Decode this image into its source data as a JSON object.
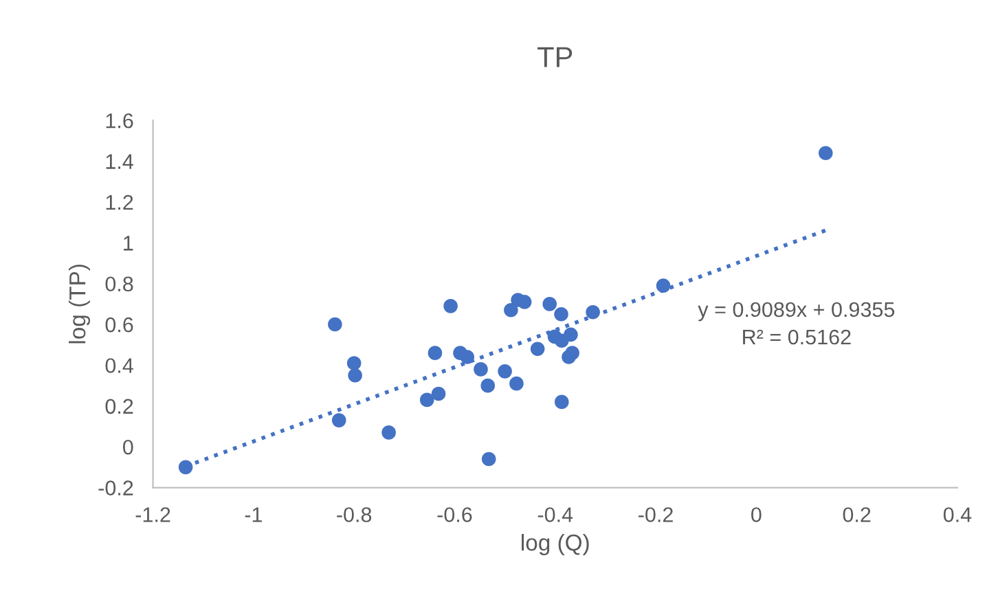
{
  "chart_data": {
    "type": "scatter",
    "title": "TP",
    "xlabel": "log (Q)",
    "ylabel": "log (TP)",
    "xlim": [
      -1.2,
      0.4
    ],
    "xticks": [
      -1.2,
      -1,
      -0.8,
      -0.6,
      -0.4,
      -0.2,
      0,
      0.2,
      0.4
    ],
    "ylim": [
      -0.2,
      1.6
    ],
    "yticks": [
      -0.2,
      0,
      0.2,
      0.4,
      0.6,
      0.8,
      1,
      1.2,
      1.4,
      1.6
    ],
    "grid": false,
    "legend": false,
    "marker": "circle",
    "series": [
      {
        "color": "#4472c4",
        "x": [
          -1.135,
          -0.838,
          -0.8,
          -0.798,
          -0.83,
          -0.731,
          -0.608,
          -0.639,
          -0.655,
          -0.632,
          -0.589,
          -0.575,
          -0.548,
          -0.534,
          -0.532,
          -0.5,
          -0.477,
          -0.488,
          -0.474,
          -0.461,
          -0.435,
          -0.411,
          -0.388,
          -0.387,
          -0.401,
          -0.369,
          -0.387,
          -0.373,
          -0.366,
          -0.325,
          -0.185,
          0.138
        ],
        "values": [
          -0.1,
          0.6,
          0.41,
          0.35,
          0.13,
          0.07,
          0.69,
          0.46,
          0.23,
          0.26,
          0.46,
          0.44,
          0.38,
          0.3,
          -0.06,
          0.37,
          0.31,
          0.67,
          0.72,
          0.71,
          0.48,
          0.7,
          0.65,
          0.22,
          0.54,
          0.55,
          0.52,
          0.44,
          0.46,
          0.66,
          0.79,
          1.44
        ]
      },
      {
        "type": "line",
        "color": "#4472c4",
        "line_style": "dotted",
        "marker": "none",
        "x": [
          -1.135,
          0.138
        ],
        "values": [
          -0.096,
          1.061
        ]
      }
    ],
    "annotations": [
      "y = 0.9089x + 0.9355",
      "R² = 0.5162"
    ]
  }
}
